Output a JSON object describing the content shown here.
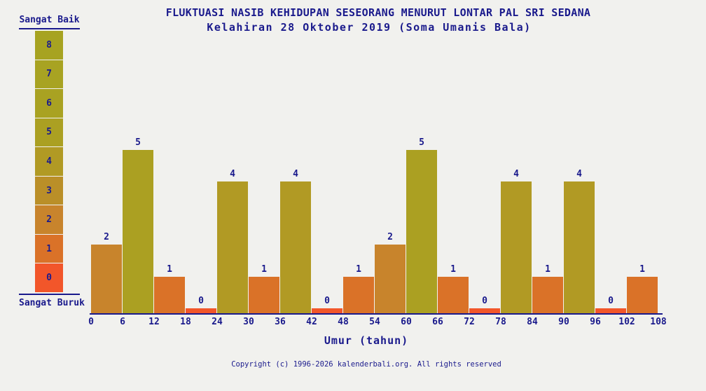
{
  "colors": {
    "background": "#f1f1ee",
    "text": "#1a1a8c",
    "axis": "#1a1a8c"
  },
  "legend": {
    "top_label": "Sangat Baik",
    "bottom_label": "Sangat Buruk",
    "levels": [
      8,
      7,
      6,
      5,
      4,
      3,
      2,
      1,
      0
    ]
  },
  "footer": {
    "copyright": "Copyright (c) 1996-2026 kalenderbali.org. All rights reserved"
  },
  "chart_data": {
    "type": "bar",
    "title": "FLUKTUASI NASIB KEHIDUPAN SESEORANG MENURUT LONTAR PAL SRI SEDANA",
    "subtitle": "Kelahiran 28 Oktober 2019 (Soma Umanis Bala)",
    "xlabel": "Umur (tahun)",
    "ylabel": "",
    "categories": [
      "0-6",
      "6-12",
      "12-18",
      "18-24",
      "24-30",
      "30-36",
      "36-42",
      "42-48",
      "48-54",
      "54-60",
      "60-66",
      "66-72",
      "72-78",
      "78-84",
      "84-90",
      "90-96",
      "96-102",
      "102-108"
    ],
    "values": [
      2,
      5,
      1,
      0,
      4,
      1,
      4,
      0,
      1,
      2,
      5,
      1,
      0,
      4,
      1,
      4,
      0,
      1
    ],
    "x_ticks": [
      0,
      6,
      12,
      18,
      24,
      30,
      36,
      42,
      48,
      54,
      60,
      66,
      72,
      78,
      84,
      90,
      96,
      102,
      108
    ],
    "ylim": [
      0,
      8
    ],
    "grid": false,
    "value_labels": true,
    "legend_position": "left",
    "color_scale": [
      "#f2562a",
      "#da7228",
      "#c8842c",
      "#ba8f28",
      "#b19a24",
      "#aba022",
      "#a9a222",
      "#a8a322",
      "#a7a321"
    ]
  }
}
